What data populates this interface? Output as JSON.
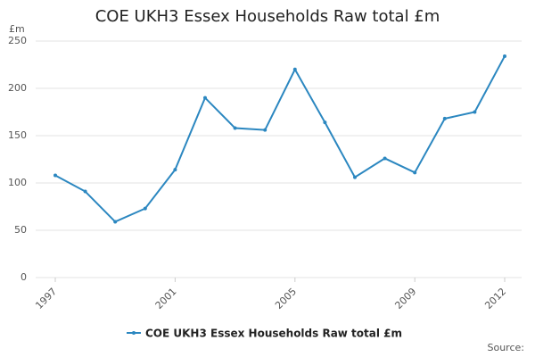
{
  "chart_data": {
    "type": "line",
    "title": "COE UKH3 Essex Households Raw total £m",
    "y_label": "£m",
    "source": "Source:",
    "x": [
      1997,
      1998,
      1999,
      2000,
      2001,
      2002,
      2003,
      2004,
      2005,
      2006,
      2007,
      2008,
      2009,
      2010,
      2011,
      2012
    ],
    "series": [
      {
        "name": "COE UKH3 Essex Households Raw total £m",
        "color": "#2b87c0",
        "values": [
          108,
          91,
          59,
          73,
          114,
          190,
          158,
          156,
          220,
          164,
          106,
          126,
          111,
          168,
          175,
          234
        ]
      }
    ],
    "xlim": [
      1997,
      2012
    ],
    "xticks": [
      1997,
      2001,
      2005,
      2009,
      2012
    ],
    "ylim": [
      0,
      250
    ],
    "yticks": [
      0,
      50,
      100,
      150,
      200,
      250
    ],
    "grid": true
  }
}
